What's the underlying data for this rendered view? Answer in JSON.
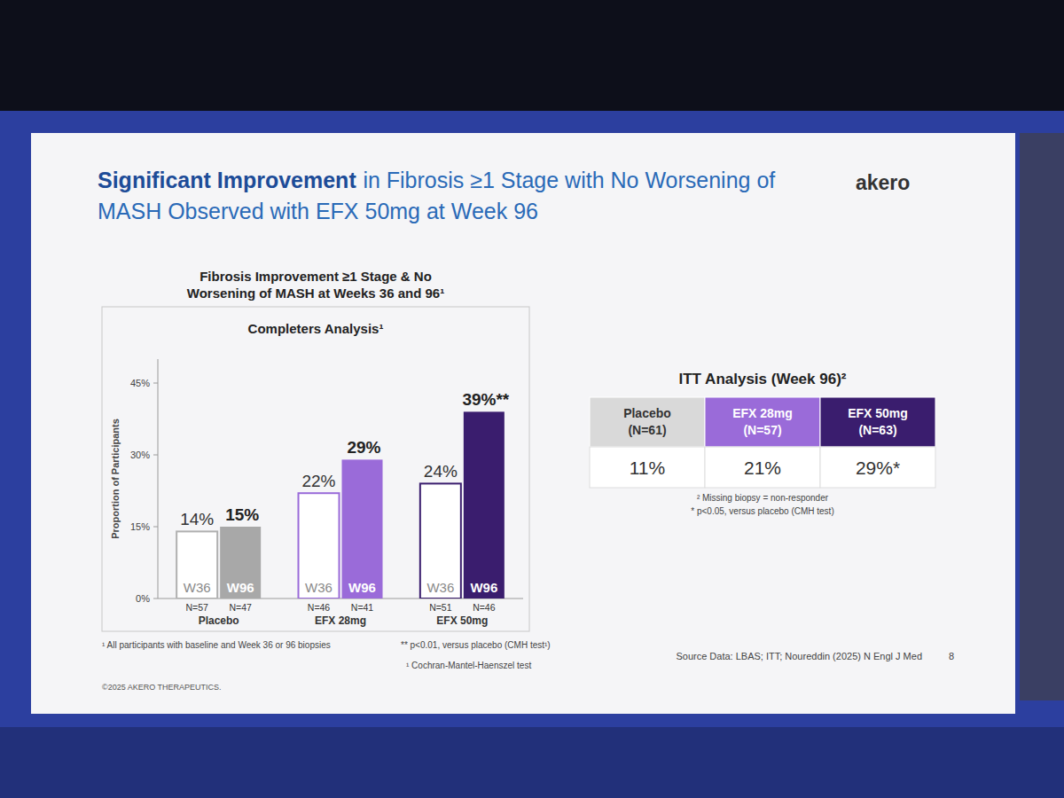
{
  "slide": {
    "title": [
      "Significant Improvement",
      "in Fibrosis ≥1 Stage with No Worsening of",
      "MASH Observed with EFX 50mg at Week 96"
    ],
    "logo": "akero",
    "copyright": "©2025 AKERO THERAPEUTICS.",
    "source": "Source Data: LBAS; ITT; Noureddin (2025) N Engl J Med",
    "page": "8"
  },
  "chart_data": {
    "type": "bar",
    "title": "Fibrosis Improvement ≥1 Stage & No Worsening of MASH at Weeks 36 and 96¹",
    "subtitle": "Completers Analysis¹",
    "y_label": "Proportion of Participants",
    "categories": [
      "Placebo",
      "EFX 28mg",
      "EFX 50mg"
    ],
    "series": [
      {
        "name": "W36",
        "colors": [
          "#b0b0b0",
          "#9a6bd9",
          "#3a1d6e"
        ],
        "values": [
          14,
          22,
          24
        ],
        "value_labels": [
          "14%",
          "22%",
          "24%"
        ],
        "n_labels": [
          "N=57",
          "N=46",
          "N=51"
        ]
      },
      {
        "name": "W96",
        "colors": [
          "#a8a8a8",
          "#9a6bd9",
          "#3a1d6e"
        ],
        "values": [
          15,
          29,
          39
        ],
        "value_labels": [
          "15%",
          "29%",
          "39%**"
        ],
        "n_labels": [
          "N=47",
          "N=41",
          "N=46"
        ]
      }
    ],
    "ylim": [
      0,
      50
    ],
    "yticks": [
      {
        "value": 0,
        "label": "0%"
      },
      {
        "value": 15,
        "label": "15%"
      },
      {
        "value": 30,
        "label": "30%"
      },
      {
        "value": 45,
        "label": "45%"
      }
    ],
    "grid": false,
    "data_labels": true,
    "footnotes": [
      "¹ All participants with baseline and Week 36 or 96 biopsies",
      "** p<0.01, versus placebo (CMH test¹)",
      "¹ Cochran-Mantel-Haenszel test"
    ]
  },
  "table": {
    "title": "ITT Analysis (Week 96)²",
    "columns": [
      {
        "name": "Placebo",
        "n": "(N=61)"
      },
      {
        "name": "EFX 28mg",
        "n": "(N=57)"
      },
      {
        "name": "EFX 50mg",
        "n": "(N=63)"
      }
    ],
    "rows": [
      [
        "11%",
        "21%",
        "29%*"
      ]
    ],
    "footnotes": [
      "² Missing biopsy = non-responder",
      "* p<0.05, versus placebo (CMH test)"
    ]
  }
}
